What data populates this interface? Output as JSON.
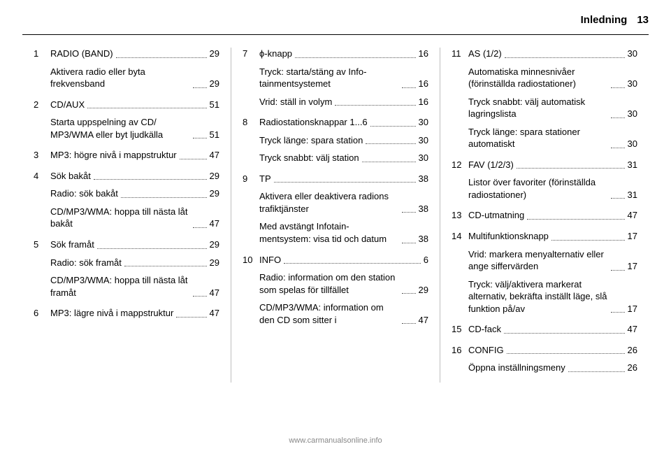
{
  "header": {
    "title": "Inledning",
    "page": "13"
  },
  "footer": "www.carmanualsonline.info",
  "columns": [
    [
      {
        "num": "1",
        "label": "RADIO (BAND)",
        "page": "29",
        "subs": [
          {
            "label": "Aktivera radio eller byta frekvensband",
            "page": "29"
          }
        ]
      },
      {
        "num": "2",
        "label": "CD/AUX",
        "page": "51",
        "subs": [
          {
            "label": "Starta uppspelning av CD/ MP3/WMA eller byt ljudkälla",
            "page": "51"
          }
        ]
      },
      {
        "num": "3",
        "label": "MP3: högre nivå i mappstruktur",
        "page": "47"
      },
      {
        "num": "4",
        "label": "Sök bakåt",
        "page": "29",
        "subs": [
          {
            "label": "Radio: sök bakåt",
            "page": "29"
          },
          {
            "label": "CD/MP3/WMA: hoppa till nästa låt bakåt",
            "page": "47"
          }
        ]
      },
      {
        "num": "5",
        "label": "Sök framåt",
        "page": "29",
        "subs": [
          {
            "label": "Radio: sök framåt",
            "page": "29"
          },
          {
            "label": "CD/MP3/WMA: hoppa till nästa låt framåt",
            "page": "47"
          }
        ]
      },
      {
        "num": "6",
        "label": "MP3: lägre nivå i mappstruktur",
        "page": "47"
      }
    ],
    [
      {
        "num": "7",
        "label": "ϕ-knapp",
        "page": "16",
        "subs": [
          {
            "label": "Tryck: starta/stäng av Info- tainmentsystemet",
            "page": "16"
          },
          {
            "label": "Vrid: ställ in volym",
            "page": "16"
          }
        ]
      },
      {
        "num": "8",
        "label": "Radiostationsknappar 1...6",
        "page": "30",
        "subs": [
          {
            "label": "Tryck länge: spara station",
            "page": "30"
          },
          {
            "label": "Tryck snabbt: välj station",
            "page": "30"
          }
        ]
      },
      {
        "num": "9",
        "label": "TP",
        "page": "38",
        "subs": [
          {
            "label": "Aktivera eller deaktivera radions trafiktjänster",
            "page": "38"
          },
          {
            "label": "Med avstängt Infotain- mentsystem: visa tid och datum",
            "page": "38"
          }
        ]
      },
      {
        "num": "10",
        "label": "INFO",
        "page": "6",
        "subs": [
          {
            "label": "Radio: information om den station som spelas för tillfället",
            "page": "29"
          },
          {
            "label": "CD/MP3/WMA: information om den CD som sitter i",
            "page": "47"
          }
        ]
      }
    ],
    [
      {
        "num": "11",
        "label": "AS (1/2)",
        "page": "30",
        "subs": [
          {
            "label": "Automatiska minnesnivåer (förinställda radiostationer)",
            "page": "30"
          },
          {
            "label": "Tryck snabbt: välj automatisk lagringslista",
            "page": "30"
          },
          {
            "label": "Tryck länge: spara stationer automatiskt",
            "page": "30"
          }
        ]
      },
      {
        "num": "12",
        "label": "FAV (1/2/3)",
        "page": "31",
        "subs": [
          {
            "label": "Listor över favoriter (förinställda radiostationer)",
            "page": "31"
          }
        ]
      },
      {
        "num": "13",
        "label": "CD-utmatning",
        "page": "47"
      },
      {
        "num": "14",
        "label": "Multifunktionsknapp",
        "page": "17",
        "subs": [
          {
            "label": "Vrid: markera menyalternativ eller ange siffervärden",
            "page": "17"
          },
          {
            "label": "Tryck: välj/aktivera markerat alternativ, bekräfta inställt läge, slå funktion på/av",
            "page": "17"
          }
        ]
      },
      {
        "num": "15",
        "label": "CD-fack",
        "page": "47"
      },
      {
        "num": "16",
        "label": "CONFIG",
        "page": "26",
        "subs": [
          {
            "label": "Öppna inställningsmeny",
            "page": "26"
          }
        ]
      }
    ]
  ]
}
